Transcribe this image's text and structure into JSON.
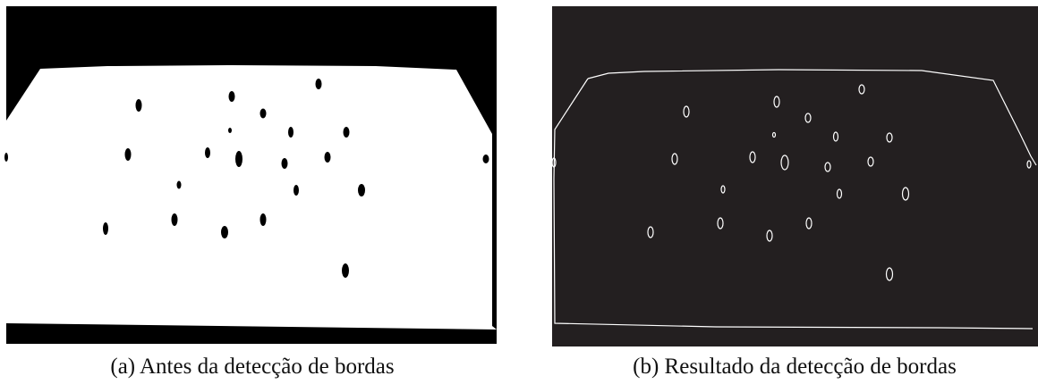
{
  "figure": {
    "panels": [
      {
        "caption": "(a) Antes da detecção de bordas"
      },
      {
        "caption": "(b) Resultado da detecção de bordas"
      }
    ]
  }
}
